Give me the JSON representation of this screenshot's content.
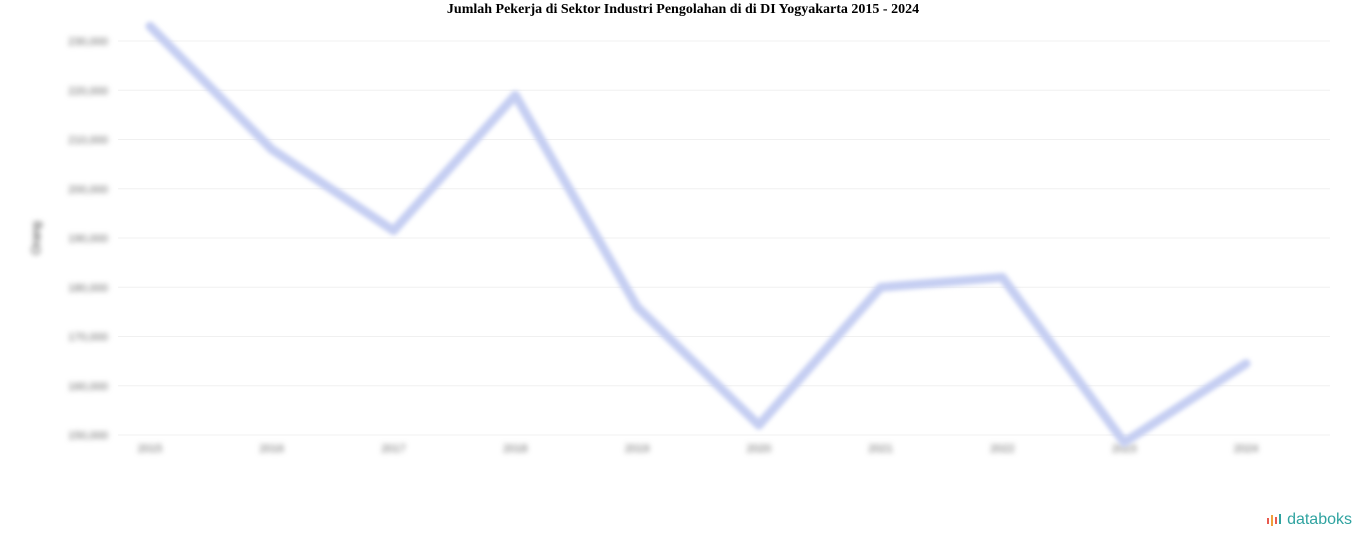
{
  "chart_data": {
    "type": "line",
    "title": "Jumlah Pekerja di Sektor Industri Pengolahan di di DI Yogyakarta 2015 - 2024",
    "xlabel": "",
    "ylabel": "Orang",
    "categories": [
      "2015",
      "2016",
      "2017",
      "2018",
      "2019",
      "2020",
      "2021",
      "2022",
      "2023",
      "2024"
    ],
    "series": [
      {
        "values": [
          233000,
          208000,
          191500,
          219000,
          176000,
          152000,
          180000,
          182000,
          148500,
          164500
        ]
      }
    ],
    "ylim": [
      150000,
      230000
    ],
    "yticks": [
      150000,
      160000,
      170000,
      180000,
      190000,
      200000,
      210000,
      220000,
      230000
    ],
    "ytick_labels": [
      "150,000",
      "160,000",
      "170,000",
      "180,000",
      "190,000",
      "200,000",
      "210,000",
      "220,000",
      "230,000"
    ],
    "grid": true,
    "line_color": "#c5cef2"
  },
  "brand": {
    "name": "databoks",
    "color": "#2fa3a0",
    "icon": "databoks-logo-icon"
  }
}
